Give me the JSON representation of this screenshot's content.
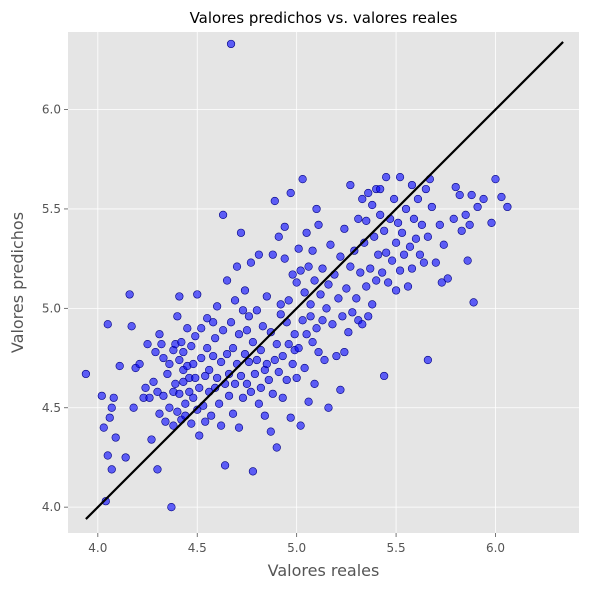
{
  "chart_data": {
    "type": "scatter",
    "title": "Valores predichos vs. valores reales",
    "xlabel": "Valores reales",
    "ylabel": "Valores predichos",
    "xlim": [
      3.85,
      6.42
    ],
    "ylim": [
      3.87,
      6.39
    ],
    "xticks": [
      4.0,
      4.5,
      5.0,
      5.5,
      6.0
    ],
    "yticks": [
      4.0,
      4.5,
      5.0,
      5.5,
      6.0
    ],
    "xtick_labels": [
      "4.0",
      "4.5",
      "5.0",
      "5.5",
      "6.0"
    ],
    "ytick_labels": [
      "4.0",
      "4.5",
      "5.0",
      "5.5",
      "6.0"
    ],
    "grid": true,
    "background_color": "#e5e5e5",
    "point_color": "#0000ff",
    "point_edge_color": "#000080",
    "line_color": "#000000",
    "reference_line": {
      "x": [
        3.94,
        6.34
      ],
      "y": [
        3.94,
        6.34
      ]
    },
    "points": [
      [
        3.94,
        4.67
      ],
      [
        4.02,
        4.56
      ],
      [
        4.03,
        4.4
      ],
      [
        4.04,
        4.03
      ],
      [
        4.05,
        4.92
      ],
      [
        4.05,
        4.26
      ],
      [
        4.06,
        4.45
      ],
      [
        4.07,
        4.19
      ],
      [
        4.07,
        4.5
      ],
      [
        4.08,
        4.55
      ],
      [
        4.09,
        4.35
      ],
      [
        4.11,
        4.71
      ],
      [
        4.14,
        4.25
      ],
      [
        4.16,
        5.07
      ],
      [
        4.17,
        4.91
      ],
      [
        4.18,
        4.5
      ],
      [
        4.19,
        4.7
      ],
      [
        4.21,
        4.72
      ],
      [
        4.23,
        4.55
      ],
      [
        4.25,
        4.82
      ],
      [
        4.24,
        4.6
      ],
      [
        4.26,
        4.55
      ],
      [
        4.27,
        4.34
      ],
      [
        4.28,
        4.63
      ],
      [
        4.29,
        4.78
      ],
      [
        4.3,
        4.58
      ],
      [
        4.3,
        4.19
      ],
      [
        4.31,
        4.87
      ],
      [
        4.31,
        4.47
      ],
      [
        4.32,
        4.82
      ],
      [
        4.33,
        4.75
      ],
      [
        4.33,
        4.56
      ],
      [
        4.34,
        4.43
      ],
      [
        4.35,
        4.67
      ],
      [
        4.36,
        4.72
      ],
      [
        4.36,
        4.5
      ],
      [
        4.37,
        4.0
      ],
      [
        4.38,
        4.79
      ],
      [
        4.38,
        4.58
      ],
      [
        4.38,
        4.41
      ],
      [
        4.39,
        4.82
      ],
      [
        4.39,
        4.62
      ],
      [
        4.4,
        4.96
      ],
      [
        4.4,
        4.48
      ],
      [
        4.41,
        4.74
      ],
      [
        4.41,
        5.06
      ],
      [
        4.41,
        4.57
      ],
      [
        4.42,
        4.83
      ],
      [
        4.42,
        4.44
      ],
      [
        4.43,
        4.69
      ],
      [
        4.43,
        4.63
      ],
      [
        4.43,
        4.78
      ],
      [
        4.44,
        4.52
      ],
      [
        4.44,
        4.46
      ],
      [
        4.45,
        4.9
      ],
      [
        4.45,
        4.71
      ],
      [
        4.46,
        4.65
      ],
      [
        4.46,
        4.58
      ],
      [
        4.47,
        4.81
      ],
      [
        4.47,
        4.42
      ],
      [
        4.48,
        4.72
      ],
      [
        4.48,
        4.55
      ],
      [
        4.49,
        4.86
      ],
      [
        4.49,
        4.65
      ],
      [
        4.5,
        5.07
      ],
      [
        4.5,
        4.49
      ],
      [
        4.51,
        4.6
      ],
      [
        4.51,
        4.36
      ],
      [
        4.52,
        4.75
      ],
      [
        4.52,
        4.9
      ],
      [
        4.53,
        4.51
      ],
      [
        4.54,
        4.66
      ],
      [
        4.54,
        4.43
      ],
      [
        4.55,
        4.95
      ],
      [
        4.55,
        4.8
      ],
      [
        4.56,
        4.58
      ],
      [
        4.56,
        4.69
      ],
      [
        4.57,
        4.46
      ],
      [
        4.58,
        4.93
      ],
      [
        4.58,
        4.76
      ],
      [
        4.59,
        4.6
      ],
      [
        4.59,
        4.85
      ],
      [
        4.6,
        4.65
      ],
      [
        4.6,
        5.01
      ],
      [
        4.61,
        4.52
      ],
      [
        4.62,
        4.73
      ],
      [
        4.62,
        4.41
      ],
      [
        4.63,
        5.47
      ],
      [
        4.63,
        4.89
      ],
      [
        4.64,
        4.62
      ],
      [
        4.64,
        4.21
      ],
      [
        4.65,
        4.77
      ],
      [
        4.65,
        5.14
      ],
      [
        4.66,
        4.56
      ],
      [
        4.66,
        4.67
      ],
      [
        4.67,
        4.93
      ],
      [
        4.67,
        6.33
      ],
      [
        4.68,
        4.8
      ],
      [
        4.68,
        4.47
      ],
      [
        4.69,
        5.04
      ],
      [
        4.69,
        4.62
      ],
      [
        4.7,
        4.72
      ],
      [
        4.7,
        5.21
      ],
      [
        4.71,
        4.4
      ],
      [
        4.71,
        4.87
      ],
      [
        4.72,
        5.38
      ],
      [
        4.72,
        4.66
      ],
      [
        4.73,
        4.99
      ],
      [
        4.73,
        4.55
      ],
      [
        4.74,
        4.77
      ],
      [
        4.74,
        5.09
      ],
      [
        4.75,
        4.62
      ],
      [
        4.75,
        4.89
      ],
      [
        4.76,
        4.73
      ],
      [
        4.76,
        4.96
      ],
      [
        4.77,
        5.23
      ],
      [
        4.77,
        4.58
      ],
      [
        4.78,
        4.83
      ],
      [
        4.78,
        4.18
      ],
      [
        4.79,
        4.67
      ],
      [
        4.8,
        4.99
      ],
      [
        4.8,
        4.74
      ],
      [
        4.81,
        5.27
      ],
      [
        4.81,
        4.52
      ],
      [
        4.82,
        4.79
      ],
      [
        4.82,
        4.6
      ],
      [
        4.83,
        4.91
      ],
      [
        4.84,
        4.46
      ],
      [
        4.84,
        4.69
      ],
      [
        4.85,
        5.06
      ],
      [
        4.85,
        4.72
      ],
      [
        4.86,
        4.64
      ],
      [
        4.87,
        4.88
      ],
      [
        4.87,
        4.38
      ],
      [
        4.88,
        5.27
      ],
      [
        4.88,
        4.57
      ],
      [
        4.89,
        5.54
      ],
      [
        4.89,
        4.74
      ],
      [
        4.9,
        4.82
      ],
      [
        4.9,
        4.3
      ],
      [
        4.91,
        5.36
      ],
      [
        4.91,
        4.68
      ],
      [
        4.92,
        4.97
      ],
      [
        4.92,
        5.02
      ],
      [
        4.93,
        4.55
      ],
      [
        4.93,
        4.76
      ],
      [
        4.94,
        5.25
      ],
      [
        4.94,
        5.41
      ],
      [
        4.95,
        4.93
      ],
      [
        4.95,
        4.64
      ],
      [
        4.96,
        5.04
      ],
      [
        4.96,
        4.82
      ],
      [
        4.97,
        5.58
      ],
      [
        4.97,
        4.45
      ],
      [
        4.98,
        4.72
      ],
      [
        4.98,
        5.17
      ],
      [
        4.99,
        4.87
      ],
      [
        4.99,
        4.79
      ],
      [
        5.0,
        5.13
      ],
      [
        5.0,
        4.65
      ],
      [
        5.01,
        5.3
      ],
      [
        5.01,
        4.8
      ],
      [
        5.02,
        5.19
      ],
      [
        5.02,
        4.41
      ],
      [
        5.03,
        5.65
      ],
      [
        5.03,
        4.94
      ],
      [
        5.04,
        5.08
      ],
      [
        5.04,
        4.7
      ],
      [
        5.05,
        4.87
      ],
      [
        5.05,
        5.38
      ],
      [
        5.06,
        5.21
      ],
      [
        5.06,
        4.53
      ],
      [
        5.07,
        4.96
      ],
      [
        5.07,
        5.02
      ],
      [
        5.08,
        4.83
      ],
      [
        5.08,
        5.29
      ],
      [
        5.09,
        4.62
      ],
      [
        5.09,
        5.14
      ],
      [
        5.1,
        5.5
      ],
      [
        5.1,
        4.9
      ],
      [
        5.11,
        4.78
      ],
      [
        5.11,
        5.42
      ],
      [
        5.12,
        5.07
      ],
      [
        5.13,
        4.94
      ],
      [
        5.13,
        5.2
      ],
      [
        5.14,
        4.74
      ],
      [
        5.15,
        5.0
      ],
      [
        5.16,
        5.12
      ],
      [
        5.16,
        4.5
      ],
      [
        5.17,
        5.32
      ],
      [
        5.18,
        4.92
      ],
      [
        5.19,
        5.17
      ],
      [
        5.2,
        4.76
      ],
      [
        5.21,
        5.05
      ],
      [
        5.22,
        4.59
      ],
      [
        5.22,
        5.26
      ],
      [
        5.23,
        4.96
      ],
      [
        5.24,
        5.4
      ],
      [
        5.24,
        4.78
      ],
      [
        5.25,
        5.1
      ],
      [
        5.26,
        4.88
      ],
      [
        5.27,
        5.62
      ],
      [
        5.27,
        5.21
      ],
      [
        5.28,
        4.98
      ],
      [
        5.29,
        5.29
      ],
      [
        5.3,
        5.05
      ],
      [
        5.31,
        5.45
      ],
      [
        5.31,
        4.94
      ],
      [
        5.32,
        5.18
      ],
      [
        5.33,
        5.55
      ],
      [
        5.33,
        4.92
      ],
      [
        5.34,
        5.33
      ],
      [
        5.35,
        5.11
      ],
      [
        5.35,
        5.44
      ],
      [
        5.36,
        4.96
      ],
      [
        5.36,
        5.58
      ],
      [
        5.37,
        5.2
      ],
      [
        5.38,
        5.52
      ],
      [
        5.38,
        5.02
      ],
      [
        5.39,
        5.36
      ],
      [
        5.4,
        5.6
      ],
      [
        5.4,
        5.14
      ],
      [
        5.41,
        5.27
      ],
      [
        5.42,
        5.47
      ],
      [
        5.42,
        5.6
      ],
      [
        5.43,
        5.18
      ],
      [
        5.44,
        4.66
      ],
      [
        5.44,
        5.39
      ],
      [
        5.45,
        5.28
      ],
      [
        5.45,
        5.66
      ],
      [
        5.46,
        5.13
      ],
      [
        5.47,
        5.45
      ],
      [
        5.48,
        5.24
      ],
      [
        5.49,
        5.55
      ],
      [
        5.5,
        5.09
      ],
      [
        5.5,
        5.33
      ],
      [
        5.51,
        5.43
      ],
      [
        5.52,
        5.66
      ],
      [
        5.52,
        5.19
      ],
      [
        5.53,
        5.38
      ],
      [
        5.54,
        5.27
      ],
      [
        5.55,
        5.5
      ],
      [
        5.56,
        5.11
      ],
      [
        5.57,
        5.31
      ],
      [
        5.58,
        5.62
      ],
      [
        5.58,
        5.2
      ],
      [
        5.59,
        5.45
      ],
      [
        5.6,
        5.35
      ],
      [
        5.61,
        5.55
      ],
      [
        5.62,
        5.27
      ],
      [
        5.63,
        5.42
      ],
      [
        5.64,
        5.23
      ],
      [
        5.65,
        5.6
      ],
      [
        5.66,
        4.74
      ],
      [
        5.66,
        5.36
      ],
      [
        5.67,
        5.65
      ],
      [
        5.68,
        5.51
      ],
      [
        5.7,
        5.23
      ],
      [
        5.72,
        5.42
      ],
      [
        5.73,
        5.13
      ],
      [
        5.74,
        5.32
      ],
      [
        5.76,
        5.15
      ],
      [
        5.79,
        5.45
      ],
      [
        5.8,
        5.61
      ],
      [
        5.82,
        5.57
      ],
      [
        5.83,
        5.39
      ],
      [
        5.85,
        5.47
      ],
      [
        5.86,
        5.24
      ],
      [
        5.87,
        5.42
      ],
      [
        5.88,
        5.57
      ],
      [
        5.89,
        5.03
      ],
      [
        5.91,
        5.51
      ],
      [
        5.94,
        5.55
      ],
      [
        5.98,
        5.43
      ],
      [
        6.0,
        5.65
      ],
      [
        6.03,
        5.56
      ],
      [
        6.06,
        5.51
      ]
    ]
  }
}
